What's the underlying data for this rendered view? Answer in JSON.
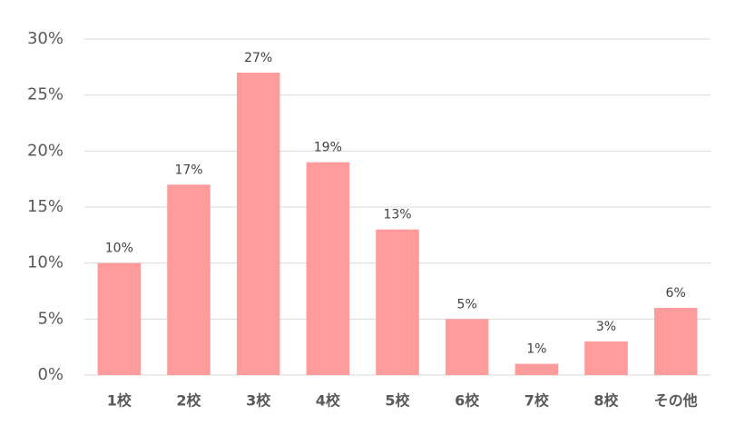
{
  "chart_data": {
    "type": "bar",
    "categories": [
      "1校",
      "2校",
      "3校",
      "4校",
      "5校",
      "6校",
      "7校",
      "8校",
      "その他"
    ],
    "values": [
      10,
      17,
      27,
      19,
      13,
      5,
      1,
      3,
      6
    ],
    "value_labels": [
      "10%",
      "17%",
      "27%",
      "19%",
      "13%",
      "5%",
      "1%",
      "3%",
      "6%"
    ],
    "color": "#ff9b9b",
    "ylim": [
      0,
      30
    ],
    "yticks": [
      {
        "value": 0,
        "label": "0%"
      },
      {
        "value": 5,
        "label": "5%"
      },
      {
        "value": 10,
        "label": "10%"
      },
      {
        "value": 15,
        "label": "15%"
      },
      {
        "value": 20,
        "label": "20%"
      },
      {
        "value": 25,
        "label": "25%"
      },
      {
        "value": 30,
        "label": "30%"
      }
    ],
    "grid": true
  }
}
